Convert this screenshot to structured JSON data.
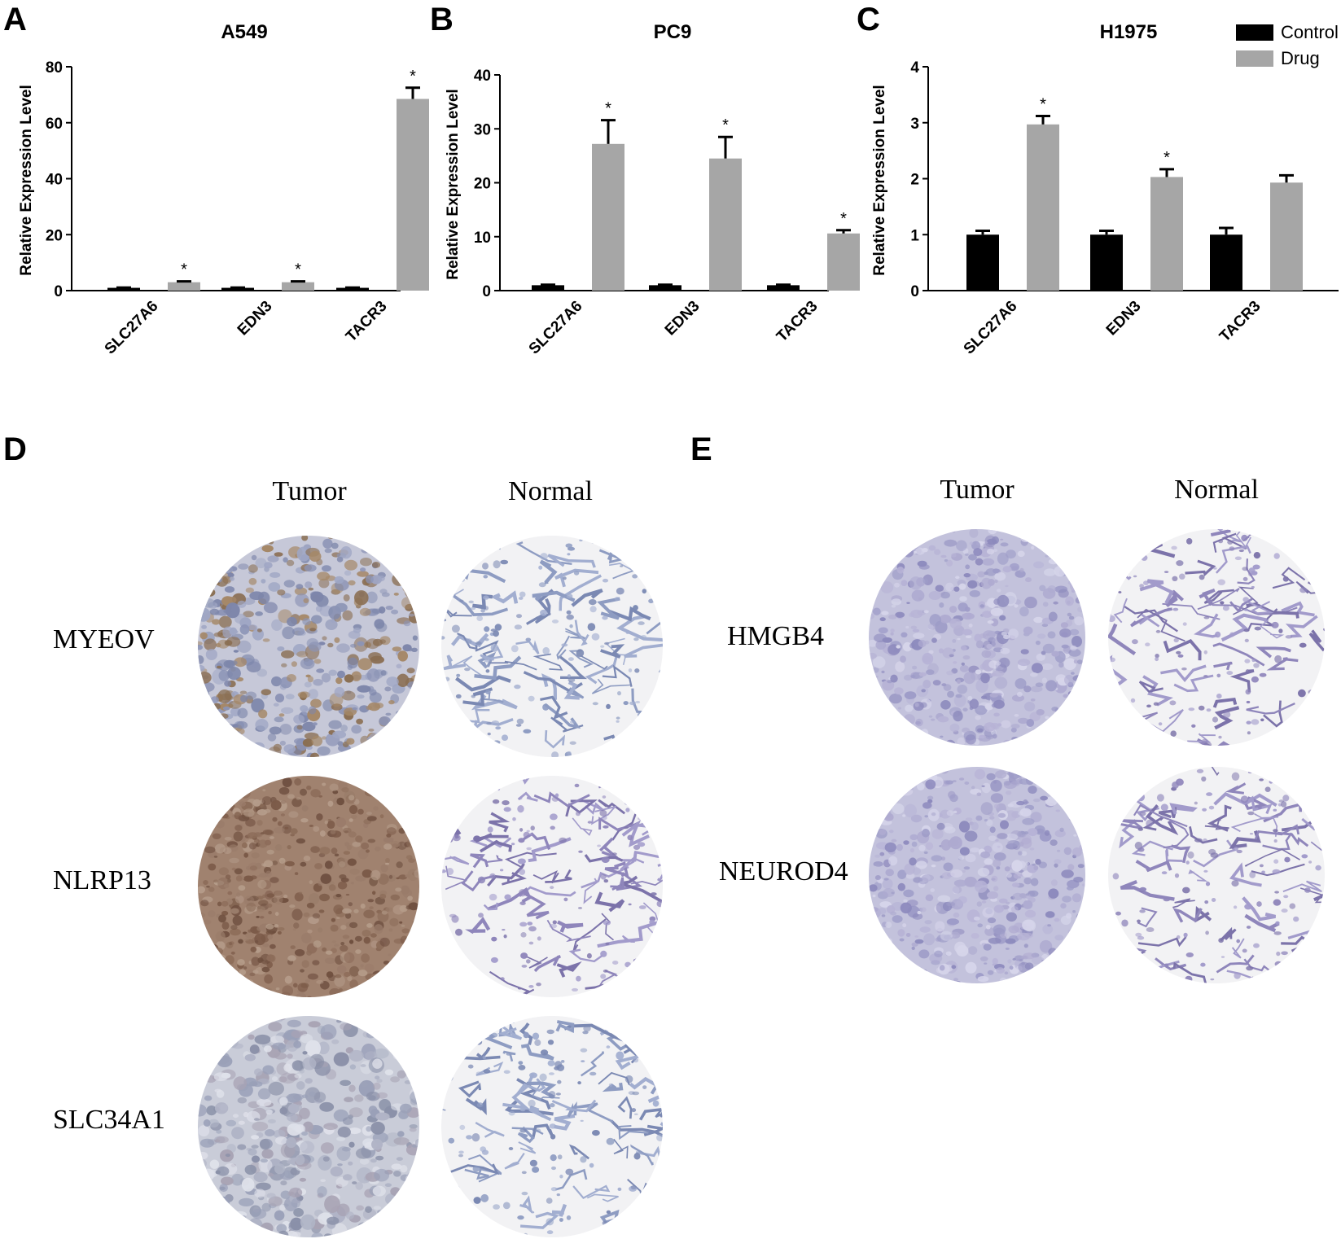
{
  "panels": {
    "a": "A",
    "b": "B",
    "c": "C",
    "d": "D",
    "e": "E"
  },
  "legend": {
    "items": [
      {
        "name": "Control",
        "color": "#000000"
      },
      {
        "name": "Drug",
        "color": "#a6a6a6"
      }
    ]
  },
  "chart_data": [
    {
      "type": "bar",
      "panel": "A",
      "title": "A549",
      "ylabel": "Relative Expression Level",
      "ylim": [
        0,
        80
      ],
      "yticks": [
        0,
        20,
        40,
        60,
        80
      ],
      "categories": [
        "SLC27A6",
        "EDN3",
        "TACR3"
      ],
      "series": [
        {
          "name": "Control",
          "color": "#000000",
          "values": [
            1,
            1,
            1
          ],
          "errors": [
            0.1,
            0.1,
            0.1
          ]
        },
        {
          "name": "Drug",
          "color": "#a6a6a6",
          "values": [
            3,
            3,
            68.5
          ],
          "errors": [
            0.3,
            0.3,
            4
          ]
        }
      ],
      "significance": [
        "*",
        "*",
        "*"
      ],
      "grid": false
    },
    {
      "type": "bar",
      "panel": "B",
      "title": "PC9",
      "ylabel": "Relative Expression Level",
      "ylim": [
        0,
        40
      ],
      "yticks": [
        0,
        10,
        20,
        30,
        40
      ],
      "categories": [
        "SLC27A6",
        "EDN3",
        "TACR3"
      ],
      "series": [
        {
          "name": "Control",
          "color": "#000000",
          "values": [
            1,
            1,
            1
          ],
          "errors": [
            0.1,
            0.1,
            0.1
          ]
        },
        {
          "name": "Drug",
          "color": "#a6a6a6",
          "values": [
            27.2,
            24.5,
            10.6
          ],
          "errors": [
            4.4,
            4,
            0.6
          ]
        }
      ],
      "significance": [
        "*",
        "*",
        "*"
      ],
      "grid": false
    },
    {
      "type": "bar",
      "panel": "C",
      "title": "H1975",
      "ylabel": "Relative Expression Level",
      "ylim": [
        0,
        4
      ],
      "yticks": [
        0,
        1,
        2,
        3,
        4
      ],
      "categories": [
        "SLC27A6",
        "EDN3",
        "TACR3"
      ],
      "series": [
        {
          "name": "Control",
          "color": "#000000",
          "values": [
            1,
            1,
            1
          ],
          "errors": [
            0.07,
            0.07,
            0.12
          ]
        },
        {
          "name": "Drug",
          "color": "#a6a6a6",
          "values": [
            2.97,
            2.03,
            1.93
          ],
          "errors": [
            0.15,
            0.14,
            0.13
          ]
        }
      ],
      "significance": [
        "*",
        "*",
        ""
      ],
      "legend_position": "top-right",
      "grid": false
    }
  ],
  "ihc": {
    "d": {
      "col_headers": [
        "Tumor",
        "Normal"
      ],
      "genes": [
        "MYEOV",
        "NLRP13",
        "SLC34A1"
      ]
    },
    "e": {
      "col_headers": [
        "Tumor",
        "Normal"
      ],
      "genes": [
        "HMGB4",
        "NEUROD4"
      ]
    }
  }
}
